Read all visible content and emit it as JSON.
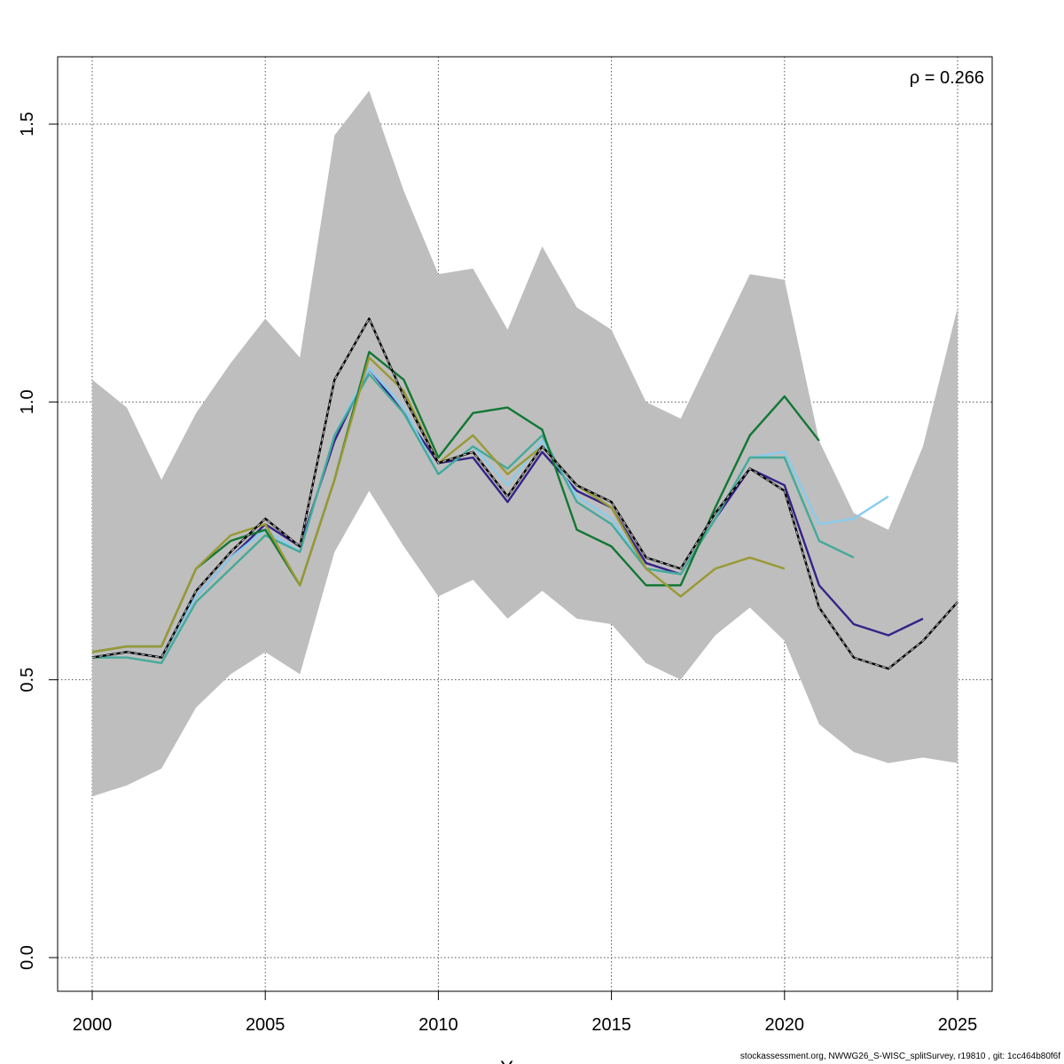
{
  "chart_data": {
    "type": "line",
    "title": "",
    "xlabel": "Years",
    "ylabel": "",
    "xlim": [
      2000,
      2025
    ],
    "ylim": [
      0,
      1.6
    ],
    "x_ticks": [
      2000,
      2005,
      2010,
      2015,
      2020,
      2025
    ],
    "y_ticks": [
      0.0,
      0.5,
      1.0,
      1.5
    ],
    "y_tick_labels": [
      "0.0",
      "0.5",
      "1.0",
      "1.5"
    ],
    "grid": true,
    "annotation": "ρ = 0.266",
    "annotation_placement": "top-right",
    "band": {
      "color": "#bebebe",
      "x": [
        2000,
        2001,
        2002,
        2003,
        2004,
        2005,
        2006,
        2007,
        2008,
        2009,
        2010,
        2011,
        2012,
        2013,
        2014,
        2015,
        2016,
        2017,
        2018,
        2019,
        2020,
        2021,
        2022,
        2023,
        2024,
        2025
      ],
      "upper": [
        1.04,
        0.99,
        0.86,
        0.98,
        1.07,
        1.15,
        1.08,
        1.48,
        1.56,
        1.38,
        1.23,
        1.24,
        1.13,
        1.28,
        1.17,
        1.13,
        1.0,
        0.97,
        1.1,
        1.23,
        1.22,
        0.93,
        0.8,
        0.77,
        0.92,
        1.17
      ],
      "lower": [
        0.29,
        0.31,
        0.34,
        0.45,
        0.51,
        0.55,
        0.51,
        0.73,
        0.84,
        0.74,
        0.65,
        0.68,
        0.61,
        0.66,
        0.61,
        0.6,
        0.53,
        0.5,
        0.58,
        0.63,
        0.57,
        0.42,
        0.37,
        0.35,
        0.36,
        0.35
      ]
    },
    "series": [
      {
        "color": "#000000",
        "dashed": true,
        "x": [
          2000,
          2001,
          2002,
          2003,
          2004,
          2005,
          2006,
          2007,
          2008,
          2009,
          2010,
          2011,
          2012,
          2013,
          2014,
          2015,
          2016,
          2017,
          2018,
          2019,
          2020,
          2021,
          2022,
          2023,
          2024,
          2025
        ],
        "values": [
          0.54,
          0.55,
          0.54,
          0.66,
          0.73,
          0.79,
          0.74,
          1.04,
          1.15,
          1.01,
          0.89,
          0.91,
          0.83,
          0.92,
          0.85,
          0.82,
          0.72,
          0.7,
          0.8,
          0.88,
          0.84,
          0.63,
          0.54,
          0.52,
          0.57,
          0.64
        ]
      },
      {
        "color": "#332288",
        "x": [
          2000,
          2001,
          2002,
          2003,
          2004,
          2005,
          2006,
          2007,
          2008,
          2009,
          2010,
          2011,
          2012,
          2013,
          2014,
          2015,
          2016,
          2017,
          2018,
          2019,
          2020,
          2021,
          2022,
          2023,
          2024
        ],
        "values": [
          0.54,
          0.55,
          0.54,
          0.65,
          0.72,
          0.78,
          0.74,
          0.93,
          1.06,
          0.98,
          0.89,
          0.9,
          0.82,
          0.91,
          0.84,
          0.81,
          0.71,
          0.69,
          0.79,
          0.88,
          0.85,
          0.67,
          0.6,
          0.58,
          0.61
        ]
      },
      {
        "color": "#88ccee",
        "x": [
          2000,
          2001,
          2002,
          2003,
          2004,
          2005,
          2006,
          2007,
          2008,
          2009,
          2010,
          2011,
          2012,
          2013,
          2014,
          2015,
          2016,
          2017,
          2018,
          2019,
          2020,
          2021,
          2022,
          2023
        ],
        "values": [
          0.54,
          0.55,
          0.54,
          0.65,
          0.72,
          0.77,
          0.73,
          0.94,
          1.06,
          0.99,
          0.87,
          0.92,
          0.85,
          0.93,
          0.83,
          0.79,
          0.7,
          0.69,
          0.79,
          0.9,
          0.91,
          0.78,
          0.79,
          0.83
        ]
      },
      {
        "color": "#44aa99",
        "x": [
          2000,
          2001,
          2002,
          2003,
          2004,
          2005,
          2006,
          2007,
          2008,
          2009,
          2010,
          2011,
          2012,
          2013,
          2014,
          2015,
          2016,
          2017,
          2018,
          2019,
          2020,
          2021,
          2022
        ],
        "values": [
          0.54,
          0.54,
          0.53,
          0.64,
          0.7,
          0.76,
          0.73,
          0.94,
          1.05,
          0.98,
          0.87,
          0.92,
          0.88,
          0.94,
          0.82,
          0.78,
          0.7,
          0.69,
          0.79,
          0.9,
          0.9,
          0.75,
          0.72
        ]
      },
      {
        "color": "#117733",
        "x": [
          2000,
          2001,
          2002,
          2003,
          2004,
          2005,
          2006,
          2007,
          2008,
          2009,
          2010,
          2011,
          2012,
          2013,
          2014,
          2015,
          2016,
          2017,
          2018,
          2019,
          2020,
          2021
        ],
        "values": [
          0.55,
          0.56,
          0.56,
          0.7,
          0.75,
          0.77,
          0.67,
          0.86,
          1.09,
          1.04,
          0.9,
          0.98,
          0.99,
          0.95,
          0.77,
          0.74,
          0.67,
          0.67,
          0.81,
          0.94,
          1.01,
          0.93
        ]
      },
      {
        "color": "#999933",
        "x": [
          2000,
          2001,
          2002,
          2003,
          2004,
          2005,
          2006,
          2007,
          2008,
          2009,
          2010,
          2011,
          2012,
          2013,
          2014,
          2015,
          2016,
          2017,
          2018,
          2019,
          2020
        ],
        "values": [
          0.55,
          0.56,
          0.56,
          0.7,
          0.76,
          0.78,
          0.67,
          0.86,
          1.08,
          1.02,
          0.89,
          0.94,
          0.87,
          0.92,
          0.85,
          0.81,
          0.7,
          0.65,
          0.7,
          0.72,
          0.7
        ]
      }
    ]
  },
  "footer": "stockassessment.org, NWWG26_S-WISC_splitSurvey, r19810 , git: 1cc464b80f6f"
}
